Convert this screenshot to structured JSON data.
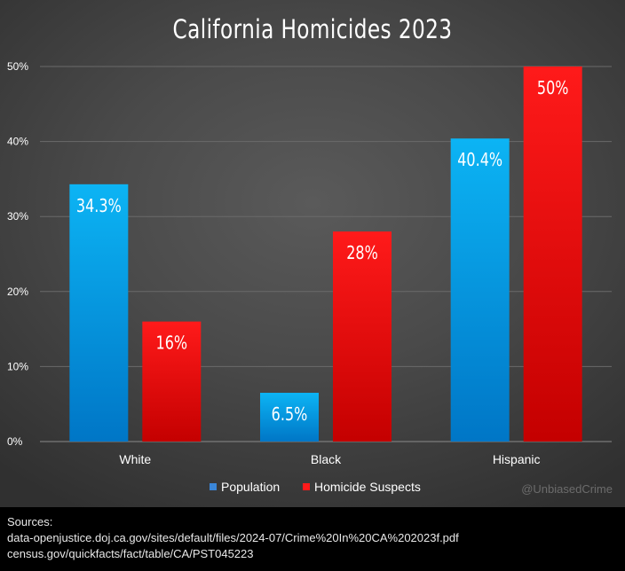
{
  "chart_data": {
    "type": "bar",
    "title": "California Homicides 2023",
    "categories": [
      "White",
      "Black",
      "Hispanic"
    ],
    "series": [
      {
        "name": "Population",
        "values": [
          34.3,
          6.5,
          40.4
        ],
        "labels": [
          "34.3%",
          "6.5%",
          "40.4%"
        ],
        "color": "#00aaee"
      },
      {
        "name": "Homicide Suspects",
        "values": [
          16,
          28,
          50
        ],
        "labels": [
          "16%",
          "28%",
          "50%"
        ],
        "color": "#ff1111"
      }
    ],
    "ylim": [
      0,
      50
    ],
    "yticks": [
      0,
      10,
      20,
      30,
      40,
      50
    ],
    "ytick_labels": [
      "0%",
      "10%",
      "20%",
      "30%",
      "40%",
      "50%"
    ],
    "xlabel": "",
    "ylabel": "",
    "grid": true,
    "legend_position": "bottom"
  },
  "watermark": "@UnbiasedCrime",
  "sources": {
    "heading": "Sources:",
    "lines": [
      "data-openjustice.doj.ca.gov/sites/default/files/2024-07/Crime%20In%20CA%202023f.pdf",
      "census.gov/quickfacts/fact/table/CA/PST045223"
    ]
  }
}
